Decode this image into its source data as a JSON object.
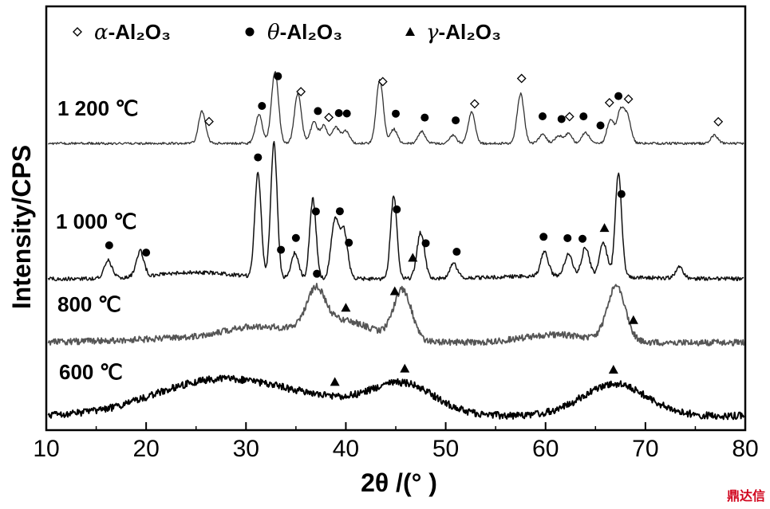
{
  "chart_data": {
    "type": "line",
    "xlabel": "2θ /(° )",
    "ylabel": "Intensity/CPS",
    "xlim": [
      10,
      80
    ],
    "xticks": [
      "10",
      "20",
      "30",
      "40",
      "50",
      "60",
      "70",
      "80"
    ],
    "legend": [
      {
        "marker": "diamond",
        "phase": "α",
        "text": "-Al₂O₃"
      },
      {
        "marker": "circle",
        "phase": "θ",
        "text": "-Al₂O₃"
      },
      {
        "marker": "triangle",
        "phase": "γ",
        "text": "-Al₂O₃"
      }
    ],
    "series": [
      {
        "name": "1 200 ℃",
        "color": "#333333",
        "peaks": [
          [
            25.6,
            40
          ],
          [
            31.3,
            36
          ],
          [
            32.9,
            90
          ],
          [
            35.2,
            62
          ],
          [
            36.8,
            26
          ],
          [
            37.8,
            22
          ],
          [
            39.0,
            20
          ],
          [
            40.0,
            16
          ],
          [
            43.4,
            80
          ],
          [
            44.8,
            18
          ],
          [
            47.6,
            15
          ],
          [
            50.7,
            10
          ],
          [
            52.6,
            40
          ],
          [
            57.5,
            62
          ],
          [
            59.7,
            12
          ],
          [
            61.3,
            10
          ],
          [
            62.3,
            12
          ],
          [
            64.0,
            14
          ],
          [
            66.5,
            30
          ],
          [
            67.5,
            40
          ],
          [
            68.2,
            32
          ],
          [
            76.9,
            10
          ]
        ],
        "markers": [
          {
            "type": "diamond",
            "x": 26.3
          },
          {
            "type": "circle",
            "x": 31.6
          },
          {
            "type": "circle",
            "x": 33.2
          },
          {
            "type": "diamond",
            "x": 35.5
          },
          {
            "type": "circle",
            "x": 37.2
          },
          {
            "type": "diamond",
            "x": 38.3
          },
          {
            "type": "circle",
            "x": 39.3
          },
          {
            "type": "circle",
            "x": 40.1
          },
          {
            "type": "diamond",
            "x": 43.7
          },
          {
            "type": "circle",
            "x": 45.0
          },
          {
            "type": "circle",
            "x": 47.9
          },
          {
            "type": "circle",
            "x": 51.0
          },
          {
            "type": "diamond",
            "x": 52.9
          },
          {
            "type": "diamond",
            "x": 57.6
          },
          {
            "type": "circle",
            "x": 59.7
          },
          {
            "type": "circle",
            "x": 61.6
          },
          {
            "type": "diamond",
            "x": 62.4
          },
          {
            "type": "circle",
            "x": 63.8
          },
          {
            "type": "circle",
            "x": 65.5
          },
          {
            "type": "diamond",
            "x": 66.4
          },
          {
            "type": "circle",
            "x": 67.3
          },
          {
            "type": "diamond",
            "x": 68.3
          },
          {
            "type": "diamond",
            "x": 77.3
          }
        ]
      },
      {
        "name": "1 000 ℃",
        "color": "#111111",
        "peaks": [
          [
            16.2,
            22
          ],
          [
            19.4,
            32
          ],
          [
            31.2,
            130
          ],
          [
            32.8,
            170
          ],
          [
            34.9,
            32
          ],
          [
            36.7,
            100
          ],
          [
            38.9,
            72
          ],
          [
            39.8,
            60
          ],
          [
            44.8,
            104
          ],
          [
            47.5,
            58
          ],
          [
            50.8,
            18
          ],
          [
            59.9,
            30
          ],
          [
            62.3,
            28
          ],
          [
            64.0,
            36
          ],
          [
            65.8,
            42
          ],
          [
            67.3,
            130
          ],
          [
            73.4,
            14
          ]
        ],
        "markers": [
          {
            "type": "circle",
            "x": 16.3
          },
          {
            "type": "circle",
            "x": 20.0
          },
          {
            "type": "circle",
            "x": 31.2
          },
          {
            "type": "circle",
            "x": 33.5
          },
          {
            "type": "circle",
            "x": 35.0
          },
          {
            "type": "circle",
            "x": 37.0
          },
          {
            "type": "circle",
            "x": 39.4
          },
          {
            "type": "circle",
            "x": 40.3
          },
          {
            "type": "circle",
            "x": 45.1
          },
          {
            "type": "triangle",
            "x": 46.7
          },
          {
            "type": "circle",
            "x": 48.0
          },
          {
            "type": "circle",
            "x": 51.1
          },
          {
            "type": "circle",
            "x": 59.8
          },
          {
            "type": "circle",
            "x": 62.2
          },
          {
            "type": "circle",
            "x": 63.7
          },
          {
            "type": "triangle",
            "x": 65.9
          },
          {
            "type": "circle",
            "x": 67.6
          }
        ]
      },
      {
        "name": "800 ℃",
        "color": "#555555",
        "peaks": [
          [
            31.0,
            14
          ],
          [
            37.0,
            46
          ],
          [
            39.5,
            26
          ],
          [
            45.7,
            62
          ],
          [
            61.0,
            10
          ],
          [
            67.1,
            70
          ]
        ],
        "markers": [
          {
            "type": "circle",
            "x": 37.1
          },
          {
            "type": "triangle",
            "x": 40.0
          },
          {
            "type": "triangle",
            "x": 44.9
          },
          {
            "type": "triangle",
            "x": 68.8
          }
        ]
      },
      {
        "name": "600 ℃",
        "color": "#000000",
        "peaks": [
          [
            24.5,
            26
          ],
          [
            30.0,
            24
          ],
          [
            38.0,
            14
          ],
          [
            45.8,
            36
          ],
          [
            66.9,
            40
          ]
        ],
        "markers": [
          {
            "type": "triangle",
            "x": 38.9
          },
          {
            "type": "triangle",
            "x": 45.9
          },
          {
            "type": "triangle",
            "x": 66.8
          }
        ]
      }
    ]
  },
  "watermark": "鼎达信"
}
